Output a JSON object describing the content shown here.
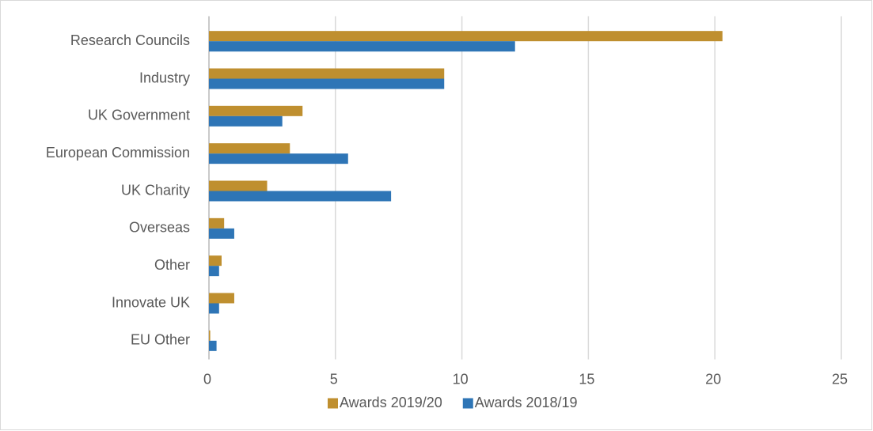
{
  "chart_data": {
    "type": "bar",
    "orientation": "horizontal",
    "categories": [
      "Research Councils",
      "Industry",
      "UK Government",
      "European Commission",
      "UK Charity",
      "Overseas",
      "Other",
      "Innovate UK",
      "EU Other"
    ],
    "series": [
      {
        "name": "Awards 2019/20",
        "color": "#bf8f2f",
        "values": [
          20.3,
          9.3,
          3.7,
          3.2,
          2.3,
          0.6,
          0.5,
          1.0,
          0.05
        ]
      },
      {
        "name": "Awards 2018/19",
        "color": "#2e75b6",
        "values": [
          12.1,
          9.3,
          2.9,
          5.5,
          7.2,
          1.0,
          0.4,
          0.4,
          0.3
        ]
      }
    ],
    "xlim": [
      0,
      25
    ],
    "xticks": [
      0,
      5,
      10,
      15,
      20,
      25
    ],
    "grid": true,
    "legend": "bottom"
  }
}
